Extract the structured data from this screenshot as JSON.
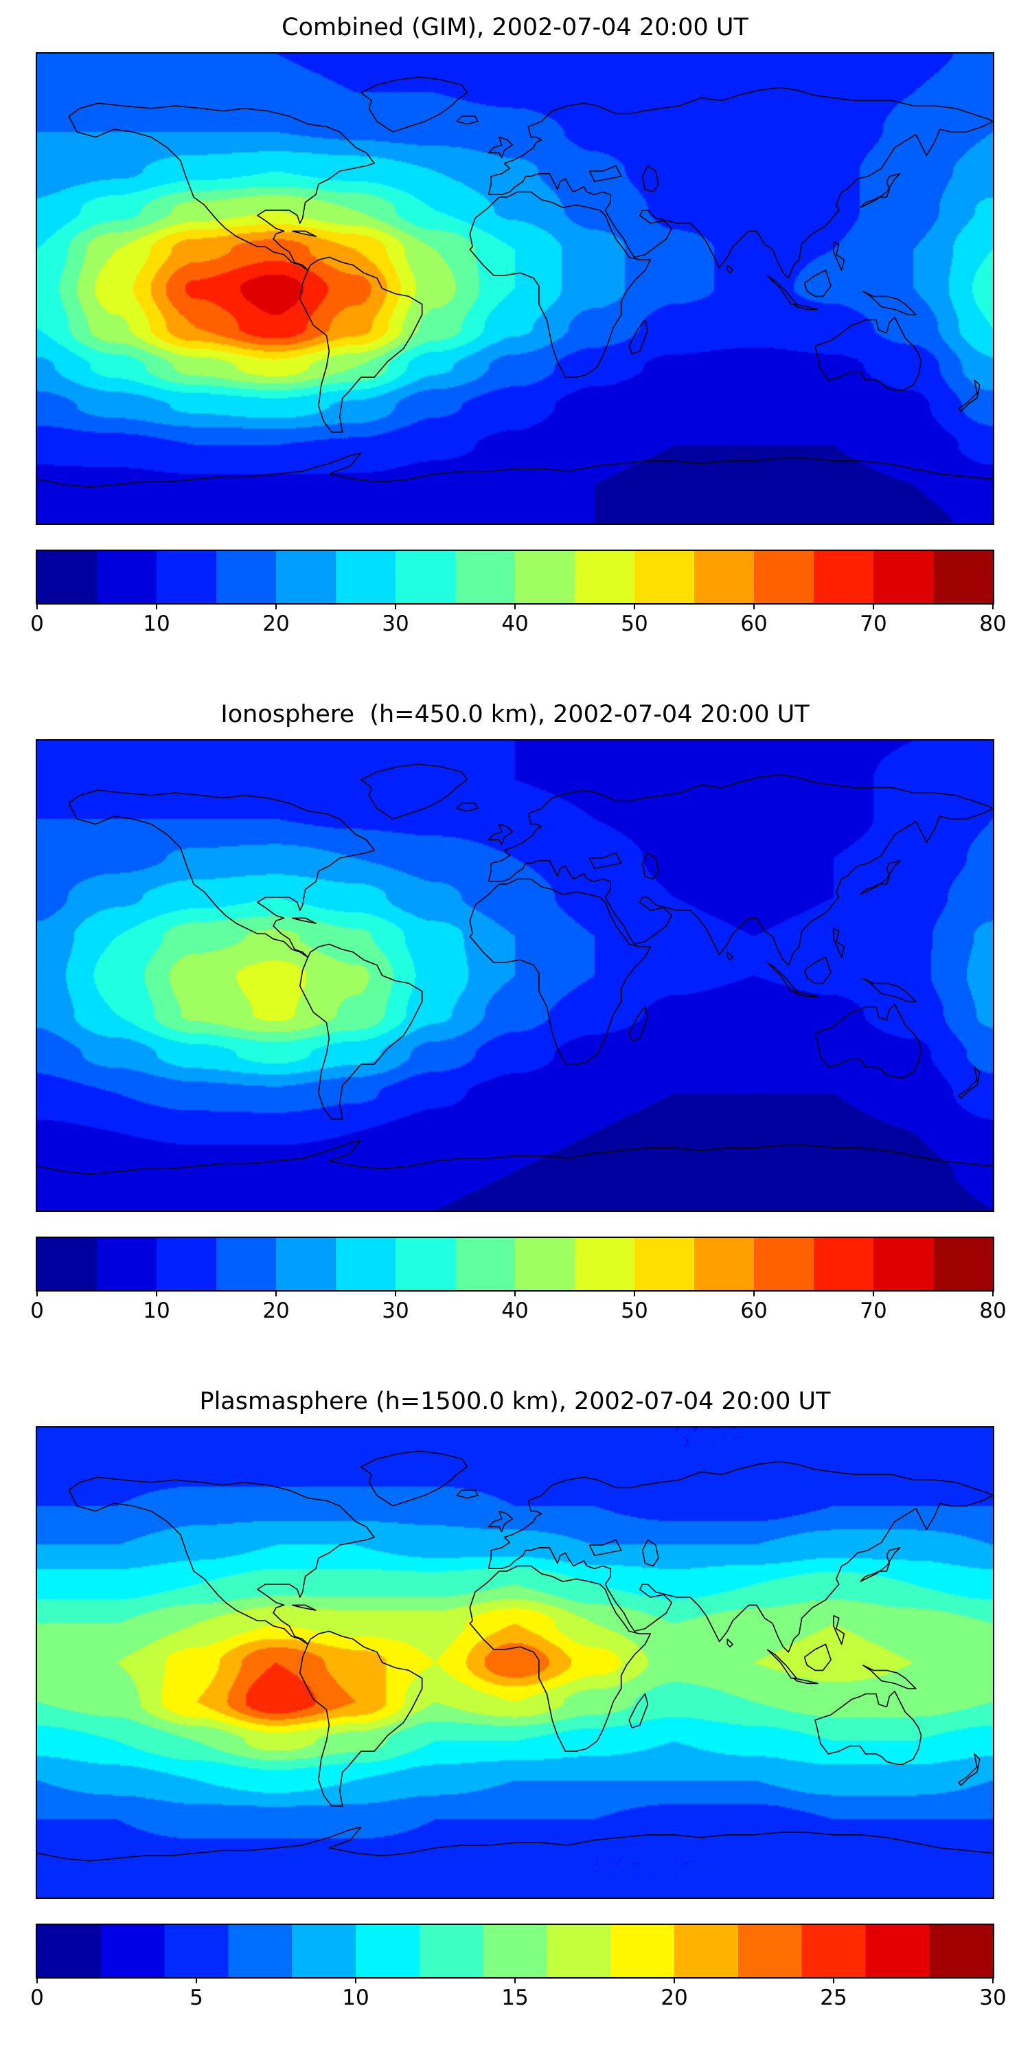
{
  "figure": {
    "description": "Three stacked global total-electron-content contour maps with jet colorbars",
    "background_color": "#ffffff",
    "coastline_color": "#000000"
  },
  "chart_data": [
    {
      "type": "heatmap",
      "title": "Combined (GIM), 2002-07-04 20:00 UT",
      "colormap": "jet",
      "projection": "equirectangular",
      "lon_range": [
        -180,
        180
      ],
      "lat_range": [
        -90,
        90
      ],
      "colorbar": {
        "min": 0,
        "max": 80,
        "segments": 16,
        "ticks": [
          0,
          10,
          20,
          30,
          40,
          50,
          60,
          70,
          80
        ]
      },
      "grid": {
        "lons": [
          -180,
          -150,
          -120,
          -90,
          -60,
          -30,
          0,
          30,
          60,
          90,
          120,
          150,
          180
        ],
        "lats": [
          90,
          75,
          60,
          45,
          30,
          15,
          0,
          -15,
          -30,
          -45,
          -60,
          -75,
          -90
        ],
        "values": [
          [
            16,
            16,
            15,
            15,
            14,
            14,
            13,
            11,
            10,
            10,
            12,
            14,
            16
          ],
          [
            18,
            17,
            16,
            16,
            15,
            15,
            14,
            12,
            10,
            11,
            13,
            15,
            18
          ],
          [
            20,
            20,
            20,
            20,
            19,
            18,
            17,
            14,
            11,
            11,
            13,
            16,
            20
          ],
          [
            22,
            24,
            28,
            30,
            28,
            25,
            21,
            16,
            13,
            13,
            14,
            18,
            22
          ],
          [
            26,
            33,
            42,
            45,
            40,
            30,
            24,
            18,
            14,
            13,
            14,
            18,
            26
          ],
          [
            30,
            45,
            58,
            63,
            55,
            40,
            30,
            22,
            16,
            14,
            15,
            20,
            30
          ],
          [
            32,
            48,
            66,
            73,
            62,
            42,
            30,
            22,
            16,
            14,
            16,
            20,
            32
          ],
          [
            30,
            44,
            60,
            69,
            57,
            38,
            26,
            18,
            13,
            12,
            13,
            17,
            30
          ],
          [
            24,
            32,
            42,
            48,
            40,
            26,
            18,
            12,
            9,
            8,
            9,
            12,
            24
          ],
          [
            18,
            22,
            26,
            28,
            24,
            16,
            12,
            8,
            6,
            6,
            7,
            9,
            18
          ],
          [
            12,
            13,
            15,
            15,
            14,
            11,
            9,
            6,
            5,
            5,
            5,
            7,
            12
          ],
          [
            8,
            8,
            9,
            9,
            9,
            8,
            7,
            5,
            4,
            4,
            4,
            5,
            8
          ],
          [
            6,
            6,
            6,
            6,
            6,
            6,
            6,
            5,
            4,
            4,
            4,
            4,
            6
          ]
        ]
      }
    },
    {
      "type": "heatmap",
      "title": "Ionosphere  (h=450.0 km), 2002-07-04 20:00 UT",
      "colormap": "jet",
      "projection": "equirectangular",
      "lon_range": [
        -180,
        180
      ],
      "lat_range": [
        -90,
        90
      ],
      "colorbar": {
        "min": 0,
        "max": 80,
        "segments": 16,
        "ticks": [
          0,
          10,
          20,
          30,
          40,
          50,
          60,
          70,
          80
        ]
      },
      "grid": {
        "lons": [
          -180,
          -150,
          -120,
          -90,
          -60,
          -30,
          0,
          30,
          60,
          90,
          120,
          150,
          180
        ],
        "lats": [
          90,
          75,
          60,
          45,
          30,
          15,
          0,
          -15,
          -30,
          -45,
          -60,
          -75,
          -90
        ],
        "values": [
          [
            12,
            12,
            11,
            11,
            10,
            10,
            10,
            9,
            8,
            8,
            9,
            10,
            12
          ],
          [
            13,
            13,
            12,
            12,
            11,
            11,
            10,
            9,
            8,
            8,
            9,
            11,
            13
          ],
          [
            15,
            15,
            15,
            15,
            14,
            13,
            12,
            10,
            8,
            8,
            9,
            11,
            15
          ],
          [
            16,
            18,
            21,
            22,
            20,
            18,
            15,
            12,
            9,
            9,
            10,
            12,
            16
          ],
          [
            18,
            24,
            28,
            30,
            27,
            21,
            17,
            13,
            10,
            9,
            10,
            13,
            18
          ],
          [
            21,
            30,
            38,
            41,
            36,
            27,
            20,
            15,
            11,
            10,
            11,
            14,
            21
          ],
          [
            22,
            32,
            43,
            47,
            41,
            28,
            20,
            15,
            11,
            10,
            11,
            14,
            22
          ],
          [
            21,
            30,
            41,
            46,
            39,
            26,
            17,
            12,
            9,
            8,
            9,
            12,
            21
          ],
          [
            17,
            22,
            28,
            32,
            27,
            18,
            12,
            8,
            6,
            6,
            7,
            9,
            17
          ],
          [
            13,
            15,
            18,
            19,
            16,
            11,
            8,
            6,
            5,
            5,
            5,
            7,
            13
          ],
          [
            9,
            10,
            11,
            11,
            10,
            8,
            6,
            5,
            4,
            4,
            4,
            5,
            9
          ],
          [
            6,
            6,
            7,
            7,
            7,
            6,
            5,
            4,
            3,
            3,
            3,
            4,
            6
          ],
          [
            5,
            5,
            5,
            5,
            5,
            5,
            4,
            4,
            3,
            3,
            3,
            3,
            5
          ]
        ]
      }
    },
    {
      "type": "heatmap",
      "title": "Plasmasphere (h=1500.0 km), 2002-07-04 20:00 UT",
      "colormap": "jet",
      "projection": "equirectangular",
      "lon_range": [
        -180,
        180
      ],
      "lat_range": [
        -90,
        90
      ],
      "colorbar": {
        "min": 0,
        "max": 30,
        "segments": 15,
        "ticks": [
          0,
          5,
          10,
          15,
          20,
          25,
          30
        ]
      },
      "grid": {
        "lons": [
          -180,
          -150,
          -120,
          -90,
          -60,
          -30,
          0,
          30,
          60,
          90,
          120,
          150,
          180
        ],
        "lats": [
          90,
          75,
          60,
          45,
          30,
          15,
          0,
          -15,
          -30,
          -45,
          -60,
          -75,
          -90
        ],
        "values": [
          [
            4,
            4,
            4,
            4,
            4,
            4,
            4,
            4,
            4,
            4,
            4,
            4,
            4
          ],
          [
            5,
            5,
            5,
            5,
            5,
            5,
            5,
            5,
            4,
            4,
            5,
            5,
            5
          ],
          [
            6,
            6,
            7,
            7,
            7,
            7,
            6,
            6,
            5,
            5,
            6,
            6,
            6
          ],
          [
            8,
            8,
            9,
            10,
            10,
            9,
            9,
            8,
            8,
            8,
            9,
            9,
            8
          ],
          [
            11,
            11,
            12,
            13,
            13,
            13,
            14,
            12,
            11,
            12,
            13,
            12,
            11
          ],
          [
            14,
            14,
            16,
            18,
            17,
            17,
            20,
            16,
            14,
            15,
            16,
            15,
            14
          ],
          [
            15,
            16,
            19,
            24,
            21,
            18,
            24,
            19,
            15,
            16,
            17,
            16,
            15
          ],
          [
            14,
            15,
            20,
            26,
            22,
            16,
            18,
            15,
            13,
            14,
            15,
            15,
            14
          ],
          [
            11,
            12,
            14,
            17,
            15,
            12,
            12,
            11,
            10,
            11,
            12,
            12,
            11
          ],
          [
            8,
            9,
            10,
            11,
            10,
            9,
            8,
            8,
            8,
            8,
            9,
            9,
            8
          ],
          [
            6,
            6,
            7,
            7,
            7,
            6,
            6,
            6,
            5,
            5,
            6,
            6,
            6
          ],
          [
            5,
            5,
            5,
            5,
            5,
            5,
            5,
            4,
            4,
            4,
            5,
            5,
            5
          ],
          [
            4,
            4,
            4,
            4,
            4,
            4,
            4,
            4,
            4,
            4,
            4,
            4,
            4
          ]
        ]
      }
    }
  ]
}
